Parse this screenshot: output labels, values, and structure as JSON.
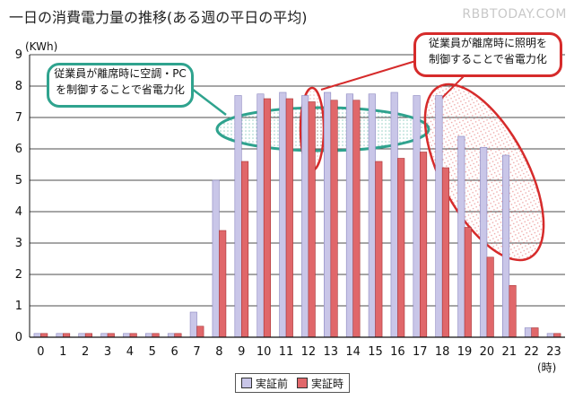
{
  "title": "一日の消費電力量の推移(ある週の平日の平均)",
  "watermark": "RBBTODAY.COM",
  "colors": {
    "before": "#c9c6e8",
    "after": "#e0676a",
    "teal": "#2fa38e",
    "red": "#d62b2b"
  },
  "callouts": {
    "teal": [
      "従業員が離席時に空調・PC",
      "を制御することで省電力化"
    ],
    "red": [
      "従業員が離席時に照明を",
      "制御することで省電力化"
    ]
  },
  "chart_data": {
    "type": "bar",
    "ylabel": "(KWh)",
    "xunit": "(時)",
    "ylim": [
      0,
      9
    ],
    "yticks": [
      0,
      1,
      2,
      3,
      4,
      5,
      6,
      7,
      8,
      9
    ],
    "grid": true,
    "legend_position": "bottom",
    "categories": [
      "0",
      "1",
      "2",
      "3",
      "4",
      "5",
      "6",
      "7",
      "8",
      "9",
      "10",
      "11",
      "12",
      "13",
      "14",
      "15",
      "16",
      "17",
      "18",
      "19",
      "20",
      "21",
      "22",
      "23"
    ],
    "series": [
      {
        "name": "実証前",
        "values": [
          0.12,
          0.12,
          0.12,
          0.12,
          0.12,
          0.12,
          0.12,
          0.8,
          5.0,
          7.7,
          7.75,
          7.8,
          7.7,
          7.8,
          7.75,
          7.75,
          7.8,
          7.7,
          7.7,
          6.4,
          6.05,
          5.8,
          0.3,
          0.12
        ]
      },
      {
        "name": "実証時",
        "values": [
          0.12,
          0.12,
          0.12,
          0.12,
          0.12,
          0.12,
          0.12,
          0.35,
          3.4,
          5.6,
          7.6,
          7.6,
          7.5,
          7.55,
          7.55,
          5.6,
          5.7,
          5.9,
          5.4,
          3.5,
          2.55,
          1.65,
          0.3,
          0.12
        ]
      }
    ]
  }
}
